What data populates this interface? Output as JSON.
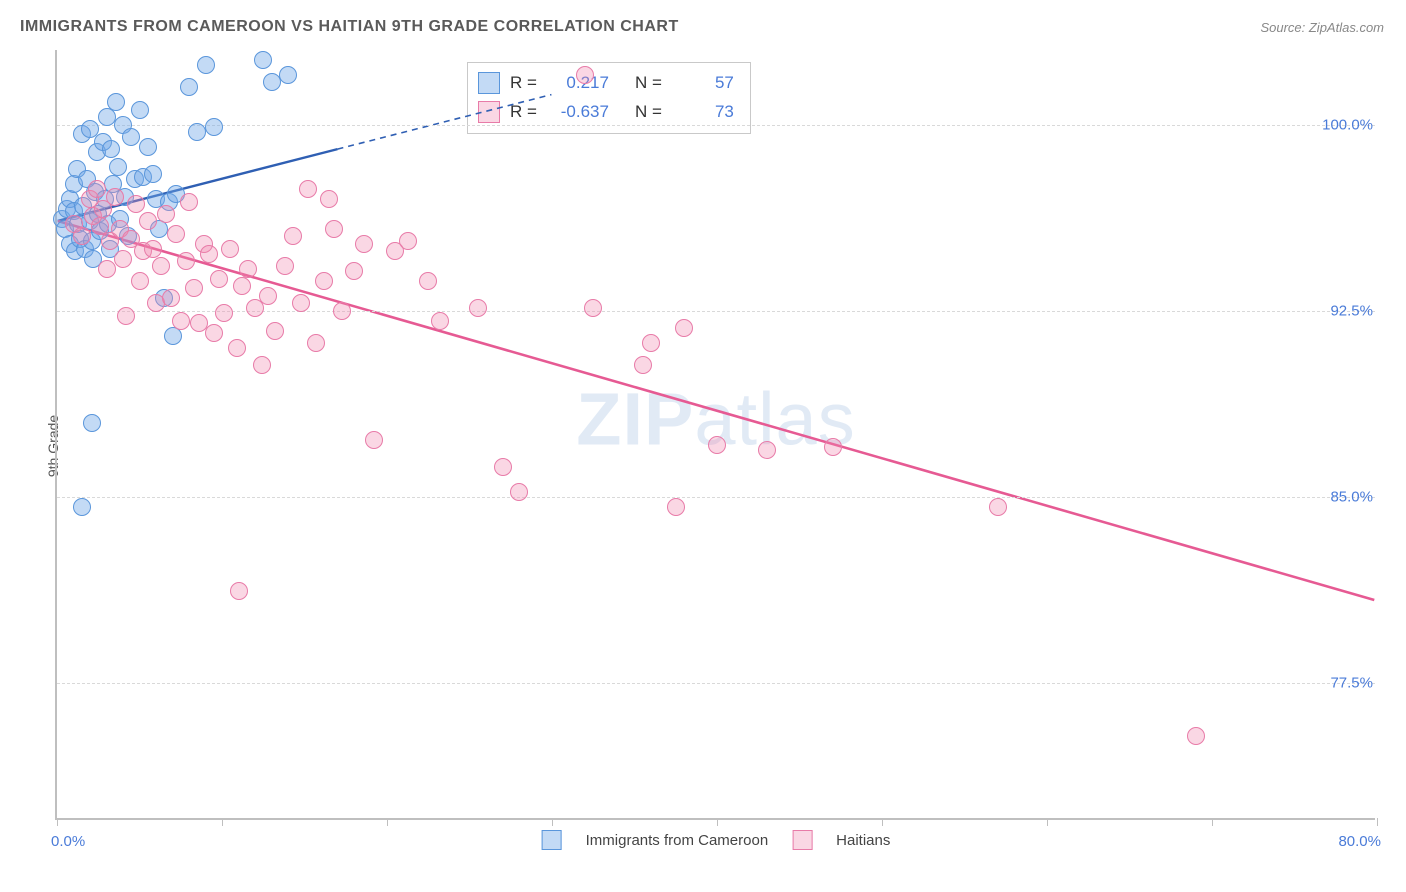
{
  "title": "IMMIGRANTS FROM CAMEROON VS HAITIAN 9TH GRADE CORRELATION CHART",
  "source": "Source: ZipAtlas.com",
  "ylabel": "9th Grade",
  "watermark_bold": "ZIP",
  "watermark_rest": "atlas",
  "chart": {
    "type": "scatter",
    "xlim": [
      0,
      80
    ],
    "ylim": [
      72,
      103
    ],
    "x_ticks": [
      0,
      10,
      20,
      30,
      40,
      50,
      60,
      70,
      80
    ],
    "x_tick_labels_shown": {
      "0": "0.0%",
      "80": "80.0%"
    },
    "y_ticks": [
      77.5,
      85.0,
      92.5,
      100.0
    ],
    "y_tick_labels": [
      "77.5%",
      "85.0%",
      "92.5%",
      "100.0%"
    ],
    "grid_color": "#d9d9d9",
    "axis_color": "#bfbfbf",
    "label_color": "#4a7bd8",
    "title_color": "#5a5a5a",
    "title_fontsize": 16,
    "tick_fontsize": 15,
    "marker_size": 18,
    "series": [
      {
        "name": "Immigrants from Cameroon",
        "color_fill": "rgba(113,167,232,0.42)",
        "color_stroke": "#5a96db",
        "R": 0.217,
        "N": 57,
        "trend": {
          "x1": 0,
          "y1": 96.1,
          "x2_solid": 17,
          "y2_solid": 99.0,
          "x2_dash": 30,
          "y2_dash": 101.2,
          "stroke": "#2f5fb3",
          "width": 2.4
        },
        "points": [
          [
            0.3,
            96.2
          ],
          [
            0.5,
            95.8
          ],
          [
            0.6,
            96.6
          ],
          [
            0.8,
            97.0
          ],
          [
            0.8,
            95.2
          ],
          [
            1.0,
            96.5
          ],
          [
            1.0,
            97.6
          ],
          [
            1.1,
            94.9
          ],
          [
            1.2,
            98.2
          ],
          [
            1.3,
            96.0
          ],
          [
            1.4,
            95.4
          ],
          [
            1.5,
            99.6
          ],
          [
            1.6,
            96.7
          ],
          [
            1.7,
            95.0
          ],
          [
            1.8,
            97.8
          ],
          [
            2.0,
            99.8
          ],
          [
            2.0,
            96.1
          ],
          [
            2.1,
            95.3
          ],
          [
            2.2,
            94.6
          ],
          [
            2.3,
            97.3
          ],
          [
            2.4,
            98.9
          ],
          [
            2.5,
            96.4
          ],
          [
            2.6,
            95.7
          ],
          [
            2.8,
            99.3
          ],
          [
            2.9,
            97.0
          ],
          [
            3.0,
            100.3
          ],
          [
            3.1,
            96.0
          ],
          [
            3.2,
            95.0
          ],
          [
            3.3,
            99.0
          ],
          [
            3.4,
            97.6
          ],
          [
            3.6,
            100.9
          ],
          [
            3.7,
            98.3
          ],
          [
            3.8,
            96.2
          ],
          [
            4.0,
            100.0
          ],
          [
            4.1,
            97.1
          ],
          [
            4.3,
            95.5
          ],
          [
            4.5,
            99.5
          ],
          [
            4.7,
            97.8
          ],
          [
            5.0,
            100.6
          ],
          [
            5.2,
            97.9
          ],
          [
            5.5,
            99.1
          ],
          [
            5.8,
            98.0
          ],
          [
            6.0,
            97.0
          ],
          [
            6.2,
            95.8
          ],
          [
            6.5,
            93.0
          ],
          [
            6.8,
            96.9
          ],
          [
            7.0,
            91.5
          ],
          [
            7.2,
            97.2
          ],
          [
            8.0,
            101.5
          ],
          [
            8.5,
            99.7
          ],
          [
            9.0,
            102.4
          ],
          [
            9.5,
            99.9
          ],
          [
            12.5,
            102.6
          ],
          [
            13.0,
            101.7
          ],
          [
            1.5,
            84.6
          ],
          [
            2.1,
            88.0
          ],
          [
            14.0,
            102.0
          ]
        ]
      },
      {
        "name": "Haitians",
        "color_fill": "rgba(240,138,176,0.34)",
        "color_stroke": "#e87ba8",
        "R": -0.637,
        "N": 73,
        "trend": {
          "x1": 0,
          "y1": 96.1,
          "x2_solid": 80,
          "y2_solid": 80.8,
          "stroke": "#e65a93",
          "width": 2.6
        },
        "points": [
          [
            1.0,
            96.0
          ],
          [
            1.5,
            95.5
          ],
          [
            2.0,
            97.0
          ],
          [
            2.2,
            96.3
          ],
          [
            2.4,
            97.4
          ],
          [
            2.6,
            95.9
          ],
          [
            2.8,
            96.6
          ],
          [
            3.0,
            94.2
          ],
          [
            3.2,
            95.3
          ],
          [
            3.5,
            97.1
          ],
          [
            3.8,
            95.8
          ],
          [
            4.0,
            94.6
          ],
          [
            4.2,
            92.3
          ],
          [
            4.5,
            95.4
          ],
          [
            4.8,
            96.8
          ],
          [
            5.0,
            93.7
          ],
          [
            5.2,
            94.9
          ],
          [
            5.5,
            96.1
          ],
          [
            5.8,
            95.0
          ],
          [
            6.0,
            92.8
          ],
          [
            6.3,
            94.3
          ],
          [
            6.6,
            96.4
          ],
          [
            6.9,
            93.0
          ],
          [
            7.2,
            95.6
          ],
          [
            7.5,
            92.1
          ],
          [
            7.8,
            94.5
          ],
          [
            8.0,
            96.9
          ],
          [
            8.3,
            93.4
          ],
          [
            8.6,
            92.0
          ],
          [
            8.9,
            95.2
          ],
          [
            9.2,
            94.8
          ],
          [
            9.5,
            91.6
          ],
          [
            9.8,
            93.8
          ],
          [
            10.1,
            92.4
          ],
          [
            10.5,
            95.0
          ],
          [
            10.9,
            91.0
          ],
          [
            11.2,
            93.5
          ],
          [
            11.6,
            94.2
          ],
          [
            12.0,
            92.6
          ],
          [
            12.4,
            90.3
          ],
          [
            12.8,
            93.1
          ],
          [
            13.2,
            91.7
          ],
          [
            13.8,
            94.3
          ],
          [
            14.3,
            95.5
          ],
          [
            14.8,
            92.8
          ],
          [
            15.2,
            97.4
          ],
          [
            15.7,
            91.2
          ],
          [
            16.2,
            93.7
          ],
          [
            16.8,
            95.8
          ],
          [
            17.3,
            92.5
          ],
          [
            18.0,
            94.1
          ],
          [
            18.6,
            95.2
          ],
          [
            19.2,
            87.3
          ],
          [
            16.5,
            97.0
          ],
          [
            20.5,
            94.9
          ],
          [
            21.3,
            95.3
          ],
          [
            22.5,
            93.7
          ],
          [
            23.2,
            92.1
          ],
          [
            25.5,
            92.6
          ],
          [
            27.0,
            86.2
          ],
          [
            28.0,
            85.2
          ],
          [
            32.0,
            102.0
          ],
          [
            32.5,
            92.6
          ],
          [
            35.5,
            90.3
          ],
          [
            36.0,
            91.2
          ],
          [
            37.5,
            84.6
          ],
          [
            38.0,
            91.8
          ],
          [
            40.0,
            87.1
          ],
          [
            43.0,
            86.9
          ],
          [
            47.0,
            87.0
          ],
          [
            57.0,
            84.6
          ],
          [
            11.0,
            81.2
          ],
          [
            69.0,
            75.4
          ]
        ]
      }
    ],
    "stat_legend": {
      "border": "#c9c9c9",
      "bg": "#fff",
      "fontsize": 17
    },
    "bottom_legend_fontsize": 15
  }
}
